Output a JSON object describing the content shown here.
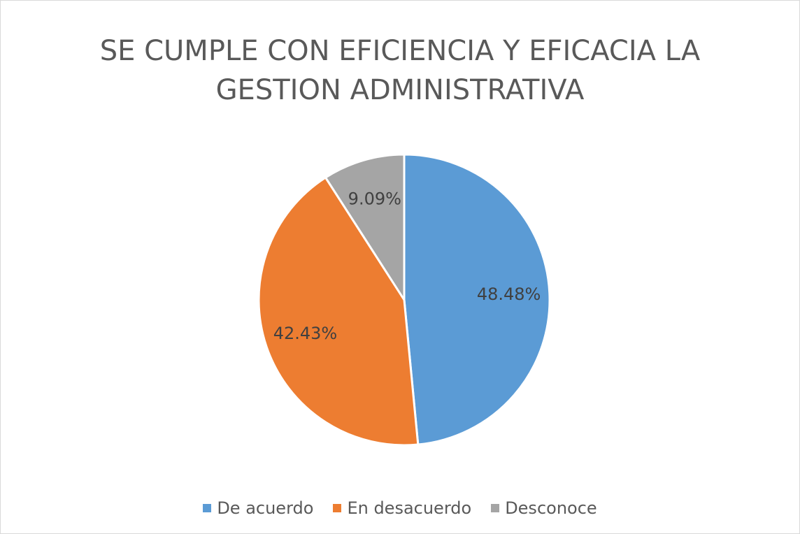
{
  "chart_data": {
    "type": "pie",
    "title": "SE CUMPLE CON EFICIENCIA Y EFICACIA LA GESTION ADMINISTRATIVA",
    "categories": [
      "De acuerdo",
      "En desacuerdo",
      "Desconoce"
    ],
    "values": [
      48.48,
      42.43,
      9.09
    ],
    "value_labels": [
      "48.48%",
      "42.43%",
      "9.09%"
    ],
    "colors": [
      "#5b9bd5",
      "#ed7d31",
      "#a5a5a5"
    ],
    "legend": "bottom"
  }
}
